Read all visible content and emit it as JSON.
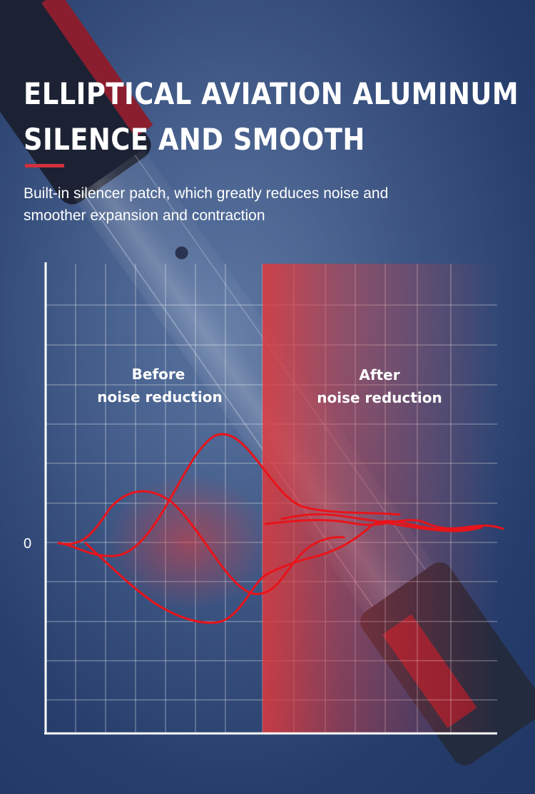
{
  "headline": {
    "line1": "ELLIPTICAL AVIATION ALUMINUM",
    "line2": "SILENCE AND SMOOTH"
  },
  "description": {
    "line1": "Built-in silencer patch, which greatly reduces noise and",
    "line2": "smoother expansion and contraction"
  },
  "chart": {
    "zero_tick": "0",
    "before_label": [
      "Before",
      "noise reduction"
    ],
    "after_label": [
      "After",
      "noise reduction"
    ]
  },
  "colors": {
    "accent": "#d0313a",
    "curve": "#e8141a",
    "highlight": "#e0393c",
    "background": "#2c4473"
  },
  "background_image": "telescopic aluminum pole"
}
